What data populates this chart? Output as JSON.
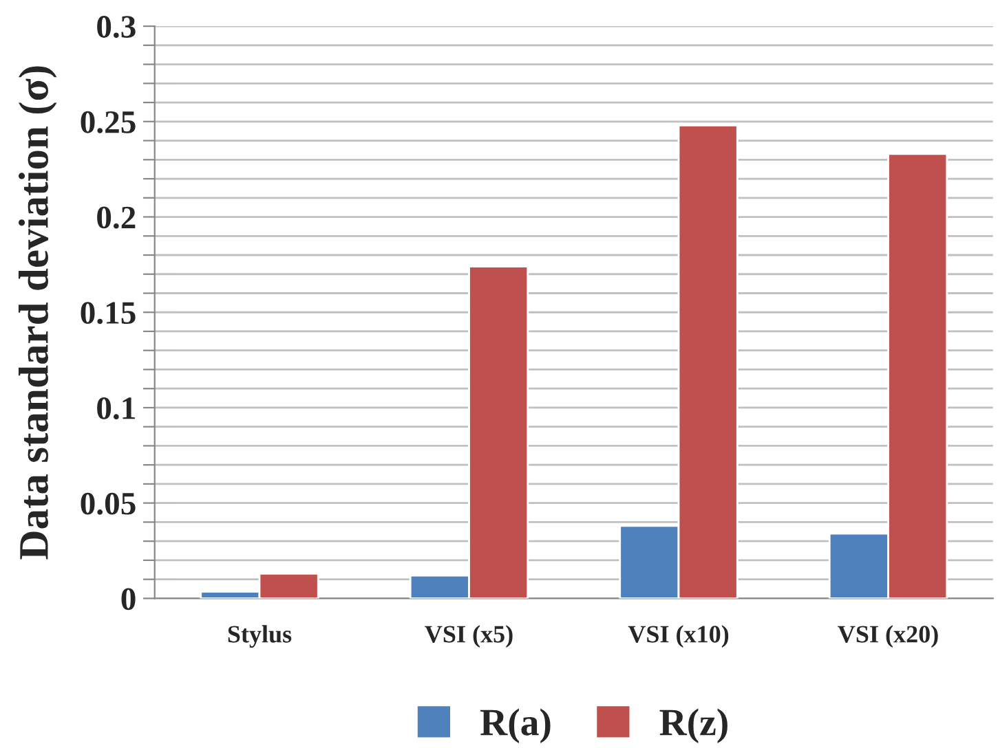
{
  "chart_data": {
    "type": "bar",
    "ylabel": "Data standard deviation (σ)",
    "categories": [
      "Stylus",
      "VSI (x5)",
      "VSI (x10)",
      "VSI (x20)"
    ],
    "series": [
      {
        "name": "R(a)",
        "color": "#4f81bd",
        "values": [
          0.0035,
          0.012,
          0.038,
          0.034
        ]
      },
      {
        "name": "R(z)",
        "color": "#c0504d",
        "values": [
          0.013,
          0.174,
          0.248,
          0.233
        ]
      }
    ],
    "ylim": [
      0,
      0.3
    ],
    "yticks": [
      0,
      {
        "value": 0.01,
        "label": null
      },
      {
        "value": 0.02,
        "label": null
      },
      {
        "value": 0.03,
        "label": null
      },
      {
        "value": 0.04,
        "label": null
      },
      0.05,
      {
        "value": 0.06,
        "label": null
      },
      {
        "value": 0.07,
        "label": null
      },
      {
        "value": 0.08,
        "label": null
      },
      {
        "value": 0.09,
        "label": null
      },
      0.1,
      {
        "value": 0.11,
        "label": null
      },
      {
        "value": 0.12,
        "label": null
      },
      {
        "value": 0.13,
        "label": null
      },
      {
        "value": 0.14,
        "label": null
      },
      0.15,
      {
        "value": 0.16,
        "label": null
      },
      {
        "value": 0.17,
        "label": null
      },
      {
        "value": 0.18,
        "label": null
      },
      {
        "value": 0.19,
        "label": null
      },
      0.2,
      {
        "value": 0.21,
        "label": null
      },
      {
        "value": 0.22,
        "label": null
      },
      {
        "value": 0.23,
        "label": null
      },
      {
        "value": 0.24,
        "label": null
      },
      0.25,
      {
        "value": 0.26,
        "label": null
      },
      {
        "value": 0.27,
        "label": null
      },
      {
        "value": 0.28,
        "label": null
      },
      {
        "value": 0.29,
        "label": null
      },
      0.3
    ],
    "grid": "y",
    "legend": "bottom"
  }
}
